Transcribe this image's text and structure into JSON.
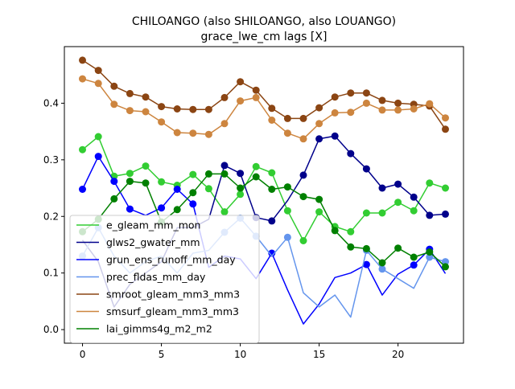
{
  "chart_data": {
    "type": "line",
    "title": "CHILOANGO (also SHILOANGO, also LOUANGO)",
    "subtitle": "grace_lwe_cm lags [X]",
    "xlabel": "",
    "ylabel": "",
    "xlim": [
      -1.15,
      24.15
    ],
    "ylim": [
      -0.024,
      0.5
    ],
    "x_ticks": [
      0,
      5,
      10,
      15,
      20
    ],
    "y_ticks": [
      0.0,
      0.1,
      0.2,
      0.3,
      0.4
    ],
    "y_tick_labels": [
      "0.0",
      "0.1",
      "0.2",
      "0.3",
      "0.4"
    ],
    "legend_position": "lower-left",
    "x": [
      0,
      1,
      2,
      3,
      4,
      5,
      6,
      7,
      8,
      9,
      10,
      11,
      12,
      13,
      14,
      15,
      16,
      17,
      18,
      19,
      20,
      21,
      22,
      23
    ],
    "series": [
      {
        "name": "e_gleam_mm_mon",
        "color": "#32cd32",
        "values": [
          0.318,
          0.341,
          0.271,
          0.276,
          0.289,
          0.261,
          0.255,
          0.274,
          0.249,
          0.208,
          0.239,
          0.288,
          0.277,
          0.21,
          0.157,
          0.208,
          0.182,
          0.173,
          0.206,
          0.206,
          0.225,
          0.21,
          0.259,
          0.25
        ],
        "markers": [
          0,
          1,
          2,
          3,
          4,
          5,
          6,
          7,
          8,
          9,
          10,
          11,
          12,
          13,
          14,
          15,
          16,
          17,
          18,
          19,
          20,
          21,
          22,
          23
        ]
      },
      {
        "name": "glws2_gwater_mm",
        "color": "#00008b",
        "values": [
          0.158,
          0.12,
          0.04,
          0.08,
          0.1,
          0.12,
          0.18,
          0.18,
          0.195,
          0.29,
          0.276,
          0.198,
          0.192,
          0.228,
          0.273,
          0.337,
          0.342,
          0.311,
          0.284,
          0.25,
          0.257,
          0.234,
          0.202,
          0.204
        ],
        "markers": [
          9,
          10,
          11,
          12,
          14,
          15,
          16,
          17,
          18,
          19,
          20,
          21,
          22,
          23
        ]
      },
      {
        "name": "grun_ens_runoff_mm_day",
        "color": "#0000ff",
        "values": [
          0.248,
          0.306,
          0.262,
          0.213,
          0.202,
          0.215,
          0.248,
          0.222,
          0.11,
          0.13,
          0.125,
          0.09,
          0.135,
          0.07,
          0.01,
          0.045,
          0.092,
          0.1,
          0.115,
          0.061,
          0.098,
          0.114,
          0.142,
          0.099
        ],
        "markers": [
          0,
          1,
          2,
          3,
          5,
          6,
          7,
          12,
          18,
          21,
          22
        ]
      },
      {
        "name": "prec_fldas_mm_day",
        "color": "#6495ed",
        "values": [
          0.13,
          0.18,
          0.13,
          0.1,
          0.12,
          0.13,
          0.1,
          0.135,
          0.14,
          0.172,
          0.197,
          0.165,
          0.13,
          0.163,
          0.065,
          0.04,
          0.061,
          0.022,
          0.14,
          0.107,
          0.09,
          0.073,
          0.128,
          0.12
        ],
        "markers": [
          0,
          1,
          9,
          10,
          11,
          13,
          18,
          19,
          22,
          23
        ]
      },
      {
        "name": "smroot_gleam_mm3_mm3",
        "color": "#8b4513",
        "values": [
          0.476,
          0.458,
          0.43,
          0.417,
          0.411,
          0.394,
          0.39,
          0.389,
          0.389,
          0.41,
          0.438,
          0.423,
          0.391,
          0.373,
          0.373,
          0.392,
          0.411,
          0.418,
          0.418,
          0.405,
          0.4,
          0.398,
          0.395,
          0.354
        ],
        "markers": [
          0,
          1,
          2,
          3,
          4,
          5,
          6,
          7,
          8,
          9,
          10,
          11,
          12,
          13,
          14,
          15,
          16,
          17,
          18,
          19,
          20,
          21,
          22,
          23
        ]
      },
      {
        "name": "smsurf_gleam_mm3_mm3",
        "color": "#cd853f",
        "values": [
          0.443,
          0.435,
          0.398,
          0.387,
          0.385,
          0.367,
          0.348,
          0.347,
          0.345,
          0.364,
          0.404,
          0.41,
          0.37,
          0.347,
          0.337,
          0.364,
          0.383,
          0.384,
          0.4,
          0.388,
          0.388,
          0.39,
          0.399,
          0.374
        ],
        "markers": [
          0,
          1,
          2,
          3,
          4,
          5,
          6,
          7,
          8,
          9,
          10,
          11,
          12,
          13,
          14,
          15,
          16,
          17,
          18,
          19,
          20,
          21,
          22,
          23
        ]
      },
      {
        "name": "lai_gimms4g_m2_m2",
        "color": "#008000",
        "values": [
          0.173,
          0.195,
          0.231,
          0.262,
          0.259,
          0.19,
          0.212,
          0.242,
          0.275,
          0.275,
          0.25,
          0.27,
          0.248,
          0.252,
          0.235,
          0.23,
          0.175,
          0.146,
          0.143,
          0.118,
          0.144,
          0.128,
          0.137,
          0.111
        ],
        "markers": [
          0,
          1,
          2,
          3,
          4,
          5,
          6,
          7,
          8,
          9,
          10,
          11,
          12,
          13,
          14,
          15,
          16,
          17,
          18,
          19,
          20,
          21,
          22,
          23
        ]
      }
    ]
  }
}
